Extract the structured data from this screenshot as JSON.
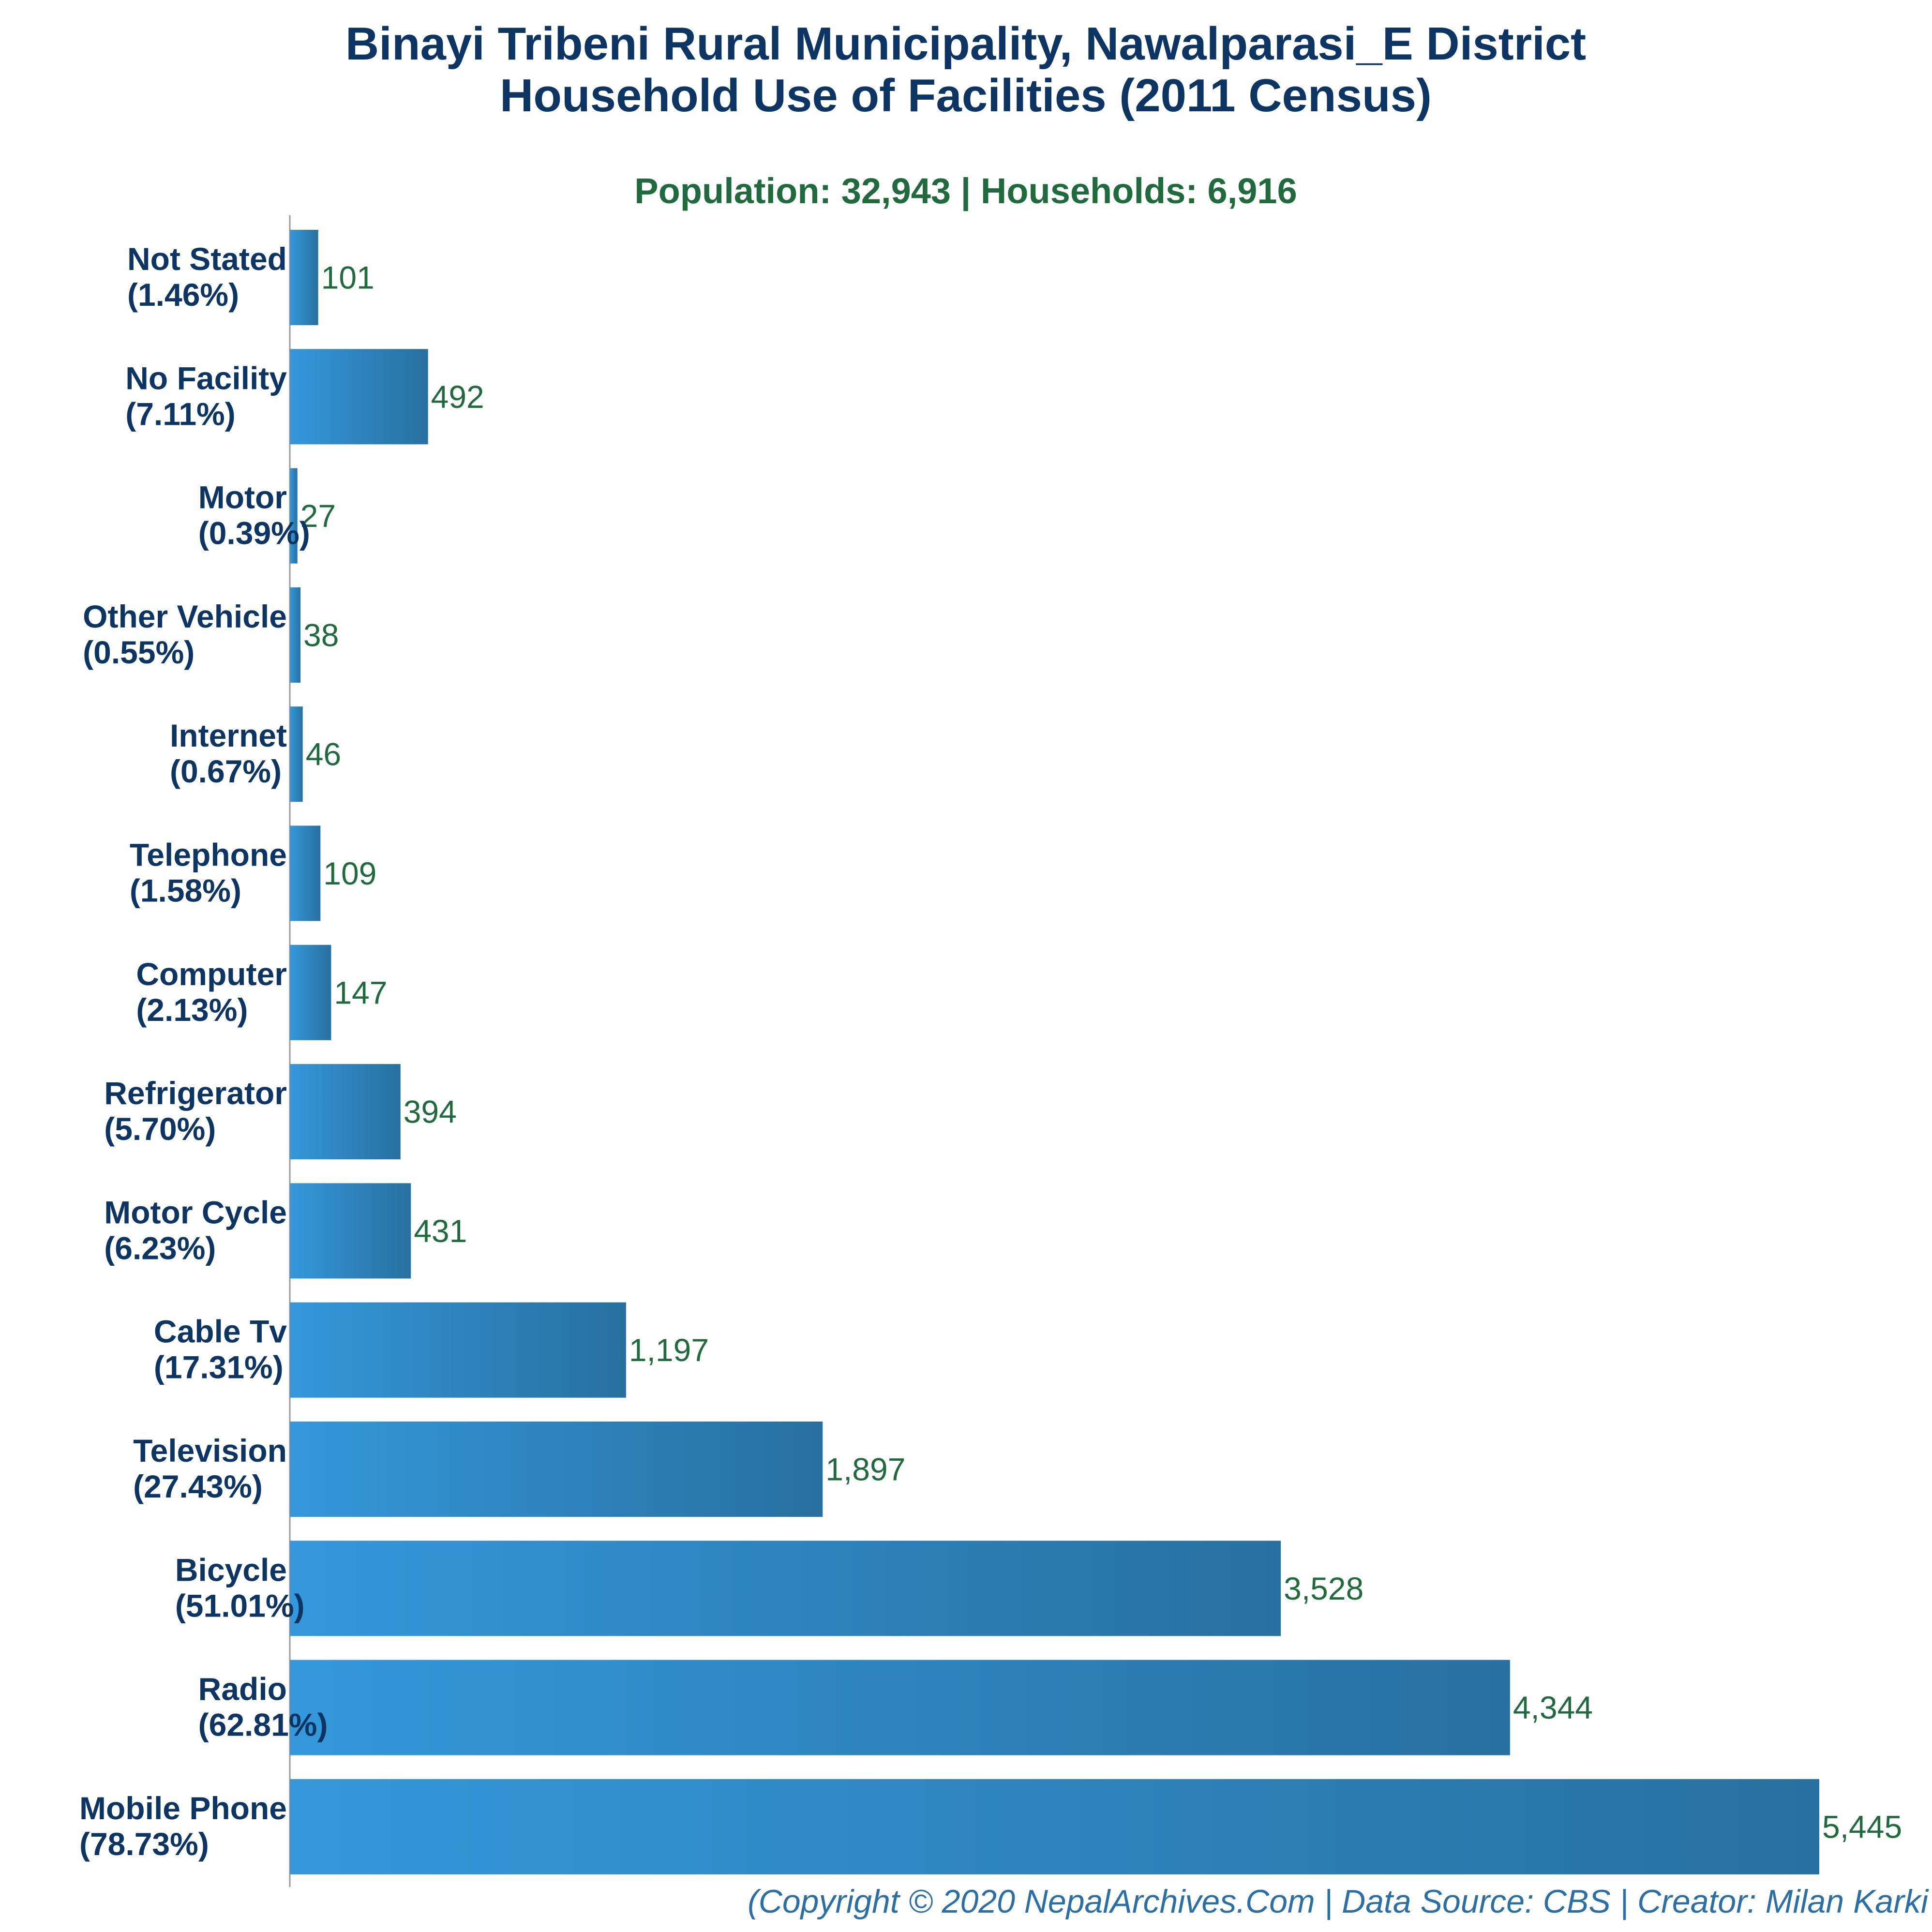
{
  "chart_data": {
    "type": "bar",
    "orientation": "horizontal",
    "title_line1": "Binayi Tribeni Rural Municipality, Nawalparasi_E District",
    "title_line2": "Household Use of Facilities (2011 Census)",
    "subtitle": "Population: 32,943 | Households: 6,916",
    "footer": "(Copyright © 2020 NepalArchives.Com | Data Source: CBS | Creator: Milan Karki",
    "categories": [
      "Not Stated",
      "No Facility",
      "Motor",
      "Other Vehicle",
      "Internet",
      "Telephone",
      "Computer",
      "Refrigerator",
      "Motor Cycle",
      "Cable Tv",
      "Television",
      "Bicycle",
      "Radio",
      "Mobile Phone"
    ],
    "percent_labels": [
      "(1.46%)",
      "(7.11%)",
      "(0.39%)",
      "(0.55%)",
      "(0.67%)",
      "(1.58%)",
      "(2.13%)",
      "(5.70%)",
      "(6.23%)",
      "(17.31%)",
      "(27.43%)",
      "(51.01%)",
      "(62.81%)",
      "(78.73%)"
    ],
    "values": [
      101,
      492,
      27,
      38,
      46,
      109,
      147,
      394,
      431,
      1197,
      1897,
      3528,
      4344,
      5445
    ],
    "value_labels": [
      "101",
      "492",
      "27",
      "38",
      "46",
      "109",
      "147",
      "394",
      "431",
      "1,197",
      "1,897",
      "3,528",
      "4,344",
      "5,445"
    ],
    "xlim": [
      0,
      5445
    ],
    "grid": false,
    "legend": "none",
    "colors": {
      "bar_light": "#3498db",
      "bar_dark": "#2870a0",
      "title": "#0d3563",
      "value": "#1f6b3e",
      "footer": "#2a6fa8"
    }
  }
}
